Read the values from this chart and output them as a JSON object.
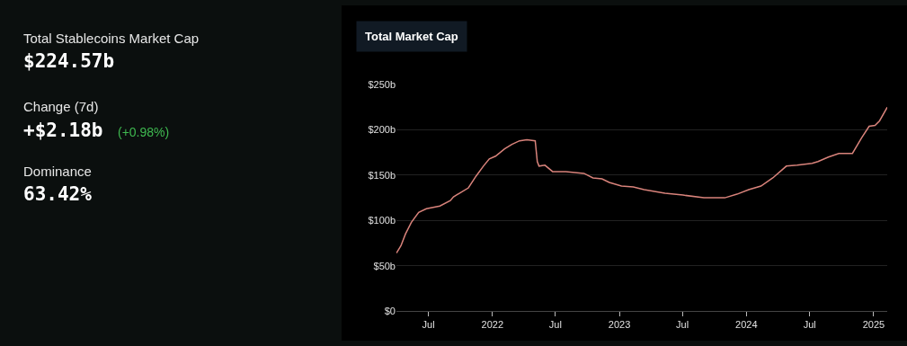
{
  "chart_data": [
    {
      "type": "other",
      "title": "Total Stablecoins Market Cap",
      "annotations": [
        "$224.57b",
        "Change (7d)",
        "+$2.18b",
        "(+0.98%)",
        "Dominance",
        "63.42%"
      ]
    },
    {
      "type": "line",
      "title": "Total Market Cap",
      "color": "#d9837b",
      "marker": "none",
      "line_style": "solid",
      "grid": "y",
      "legend": false,
      "x": [
        "2021-03-31",
        "2021-04-13",
        "2021-04-26",
        "2021-05-13",
        "2021-06-03",
        "2021-06-25",
        "2021-08-03",
        "2021-09-02",
        "2021-09-11",
        "2021-09-28",
        "2021-10-24",
        "2021-11-15",
        "2021-12-06",
        "2021-12-23",
        "2022-01-10",
        "2022-02-05",
        "2022-02-26",
        "2022-03-20",
        "2022-04-10",
        "2022-05-04",
        "2022-05-10",
        "2022-05-15",
        "2022-06-01",
        "2022-06-23",
        "2022-07-31",
        "2022-09-21",
        "2022-10-17",
        "2022-11-12",
        "2022-12-03",
        "2023-01-07",
        "2023-02-10",
        "2023-03-13",
        "2023-05-12",
        "2023-07-03",
        "2023-09-01",
        "2023-10-31",
        "2023-12-05",
        "2024-01-08",
        "2024-02-12",
        "2024-03-17",
        "2024-04-25",
        "2024-05-26",
        "2024-07-08",
        "2024-07-25",
        "2024-08-24",
        "2024-09-23",
        "2024-11-01",
        "2024-11-27",
        "2024-12-19",
        "2025-01-05",
        "2025-01-18",
        "2025-02-09"
      ],
      "values": [
        64,
        72,
        85,
        98,
        109,
        113,
        116,
        122,
        126,
        130,
        136,
        149,
        160,
        168,
        171,
        179,
        184,
        188,
        189,
        188,
        165,
        160,
        161,
        154,
        154,
        152,
        147,
        146,
        142,
        138,
        137,
        134,
        130,
        128,
        125,
        125,
        129,
        134,
        138,
        147,
        160,
        161,
        163,
        165,
        170,
        174,
        174,
        191,
        204,
        205,
        210,
        225
      ],
      "xlim": [
        "2021-03-31",
        "2025-02-09"
      ],
      "xticks": [
        {
          "value": "2021-07-01",
          "label": "Jul"
        },
        {
          "value": "2022-01-01",
          "label": "2022"
        },
        {
          "value": "2022-07-01",
          "label": "Jul"
        },
        {
          "value": "2023-01-01",
          "label": "2023"
        },
        {
          "value": "2023-07-01",
          "label": "Jul"
        },
        {
          "value": "2024-01-01",
          "label": "2024"
        },
        {
          "value": "2024-07-01",
          "label": "Jul"
        },
        {
          "value": "2025-01-01",
          "label": "2025"
        }
      ],
      "ylim": [
        0,
        250
      ],
      "yticks": [
        {
          "value": 0,
          "label": "$0"
        },
        {
          "value": 50,
          "label": "$50b"
        },
        {
          "value": 100,
          "label": "$100b"
        },
        {
          "value": 150,
          "label": "$150b"
        },
        {
          "value": 200,
          "label": "$200b"
        },
        {
          "value": 250,
          "label": "$250b"
        }
      ]
    }
  ]
}
